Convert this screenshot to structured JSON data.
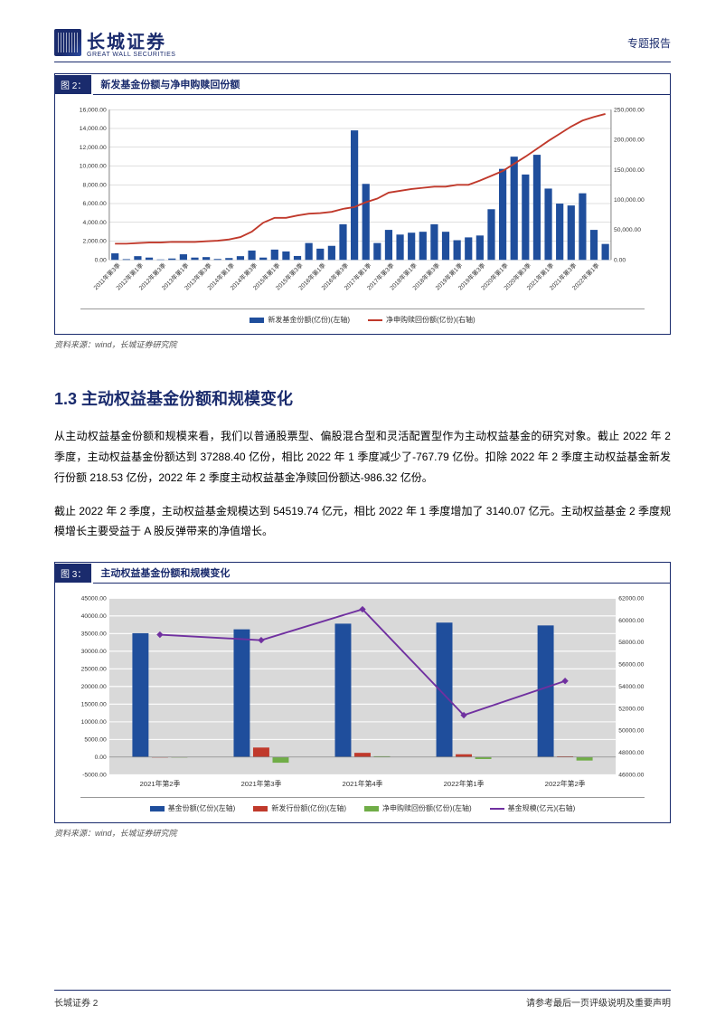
{
  "header": {
    "logo_main": "长城证券",
    "logo_sub": "GREAT WALL SECURITIES",
    "doc_type": "专题报告"
  },
  "figure2": {
    "tab": "图 2：",
    "title": "新发基金份额与净申购赎回份额",
    "source": "资料来源：wind，长城证券研究院",
    "left_axis": {
      "min": 0,
      "max": 16000,
      "step": 2000,
      "labels": [
        "0.00",
        "2,000.00",
        "4,000.00",
        "6,000.00",
        "8,000.00",
        "10,000.00",
        "12,000.00",
        "14,000.00",
        "16,000.00"
      ]
    },
    "right_axis": {
      "min": 0,
      "max": 250000,
      "step": 50000,
      "labels": [
        "0.00",
        "50,000.00",
        "100,000.00",
        "150,000.00",
        "200,000.00",
        "250,000.00"
      ]
    },
    "categories": [
      "2011年第3季",
      "2012年第1季",
      "2012年第3季",
      "2013年第1季",
      "2013年第3季",
      "2014年第1季",
      "2014年第3季",
      "2015年第1季",
      "2015年第3季",
      "2016年第1季",
      "2016年第3季",
      "2017年第1季",
      "2017年第3季",
      "2018年第1季",
      "2018年第3季",
      "2019年第1季",
      "2019年第3季",
      "2020年第1季",
      "2020年第3季",
      "2021年第1季",
      "2021年第3季",
      "2022年第1季"
    ],
    "bar_values": [
      700,
      80,
      400,
      250,
      50,
      150,
      600,
      250,
      300,
      100,
      200,
      400,
      1000,
      250,
      1100,
      900,
      420,
      1800,
      1200,
      1500,
      3800,
      13800,
      8100,
      1800,
      3200,
      2700,
      2900,
      3000,
      3800,
      3000,
      2100,
      2400,
      2600,
      5400,
      9700,
      11000,
      9100,
      11200,
      7600,
      6000,
      5800,
      7100,
      3200,
      1700
    ],
    "line_values": [
      27000,
      27000,
      28000,
      29000,
      29000,
      30000,
      30000,
      30000,
      31000,
      32000,
      34000,
      38000,
      47000,
      62000,
      70000,
      70000,
      74000,
      77000,
      78000,
      80000,
      85000,
      88000,
      96000,
      102000,
      112000,
      115000,
      118000,
      120000,
      122000,
      122000,
      125000,
      125000,
      132000,
      140000,
      148000,
      160000,
      172000,
      185000,
      198000,
      210000,
      222000,
      232000,
      238000,
      243000
    ],
    "bar_color": "#1f4e9c",
    "line_color": "#c0392b",
    "grid_color": "#bfbfbf",
    "legend": [
      {
        "type": "bar",
        "color": "#1f4e9c",
        "label": "新发基金份额(亿份)(左轴)"
      },
      {
        "type": "line",
        "color": "#c0392b",
        "label": "净申购赎回份额(亿份)(右轴)"
      }
    ]
  },
  "section": {
    "heading": "1.3  主动权益基金份额和规模变化",
    "para1": "从主动权益基金份额和规模来看，我们以普通股票型、偏股混合型和灵活配置型作为主动权益基金的研究对象。截止 2022 年 2 季度，主动权益基金份额达到 37288.40 亿份，相比 2022 年 1 季度减少了-767.79 亿份。扣除 2022 年 2 季度主动权益基金新发行份额 218.53 亿份，2022 年 2 季度主动权益基金净赎回份额达-986.32 亿份。",
    "para2": "截止 2022 年 2 季度，主动权益基金规模达到 54519.74 亿元，相比 2022 年 1 季度增加了 3140.07 亿元。主动权益基金 2 季度规模增长主要受益于 A 股反弹带来的净值增长。"
  },
  "figure3": {
    "tab": "图 3：",
    "title": "主动权益基金份额和规模变化",
    "source": "资料来源：wind，长城证券研究院",
    "left_axis": {
      "min": -5000,
      "max": 45000,
      "step": 5000,
      "labels": [
        "-5000.00",
        "0.00",
        "5000.00",
        "10000.00",
        "15000.00",
        "20000.00",
        "25000.00",
        "30000.00",
        "35000.00",
        "40000.00",
        "45000.00"
      ]
    },
    "right_axis": {
      "min": 46000,
      "max": 62000,
      "step": 2000,
      "labels": [
        "46000.00",
        "48000.00",
        "50000.00",
        "52000.00",
        "54000.00",
        "56000.00",
        "58000.00",
        "60000.00",
        "62000.00"
      ]
    },
    "categories": [
      "2021年第2季",
      "2021年第3季",
      "2021年第4季",
      "2022年第1季",
      "2022年第2季"
    ],
    "series": {
      "fund_share": {
        "color": "#1f4e9c",
        "values": [
          35100,
          36200,
          37800,
          38100,
          37300
        ]
      },
      "new_issue": {
        "color": "#c0392b",
        "values": [
          0,
          2700,
          1200,
          800,
          220
        ]
      },
      "net_sub": {
        "color": "#70ad47",
        "values": [
          0,
          -1600,
          240,
          -550,
          -980
        ]
      },
      "fund_size": {
        "color": "#7030a0",
        "values": [
          58700,
          58200,
          61000,
          51400,
          54500
        ]
      }
    },
    "grid_color": "#bfbfbf",
    "bg_color": "#d9d9d9",
    "legend": [
      {
        "type": "bar",
        "color": "#1f4e9c",
        "label": "基金份额(亿份)(左轴)"
      },
      {
        "type": "bar",
        "color": "#c0392b",
        "label": "新发行份额(亿份)(左轴)"
      },
      {
        "type": "bar",
        "color": "#70ad47",
        "label": "净申购赎回份额(亿份)(左轴)"
      },
      {
        "type": "line",
        "color": "#7030a0",
        "label": "基金规模(亿元)(右轴)"
      }
    ]
  },
  "footer": {
    "left": "长城证券 2",
    "right": "请参考最后一页评级说明及重要声明"
  }
}
